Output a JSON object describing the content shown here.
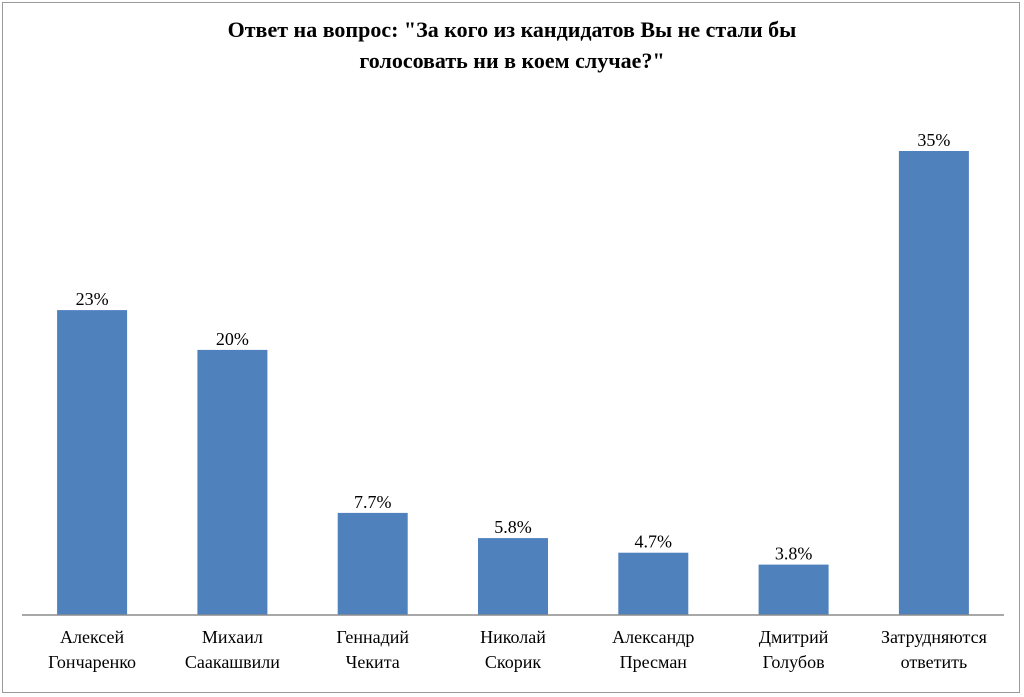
{
  "chart_data": {
    "type": "bar",
    "title": "Ответ на вопрос: \"За кого из кандидатов Вы не стали бы голосовать ни в коем случае?\"",
    "title_lines": [
      "Ответ на вопрос: \"За кого из кандидатов Вы не стали бы",
      "голосовать ни в коем случае?\""
    ],
    "categories": [
      [
        "Алексей",
        "Гончаренко"
      ],
      [
        "Михаил",
        "Саакашвили"
      ],
      [
        "Геннадий",
        "Чекита"
      ],
      [
        "Николай",
        "Скорик"
      ],
      [
        "Александр",
        "Пресман"
      ],
      [
        "Дмитрий",
        "Голубов"
      ],
      [
        "Затрудняются",
        "ответить"
      ]
    ],
    "values": [
      23,
      20,
      7.7,
      5.8,
      4.7,
      3.8,
      35
    ],
    "data_labels": [
      "23%",
      "20%",
      "7.7%",
      "5.8%",
      "4.7%",
      "3.8%",
      "35%"
    ],
    "ylim": [
      0,
      35
    ],
    "xlabel": "",
    "ylabel": "",
    "grid": false,
    "legend": "none",
    "bar_color": "#4f81bd",
    "axis_color": "#8c8c8c"
  }
}
